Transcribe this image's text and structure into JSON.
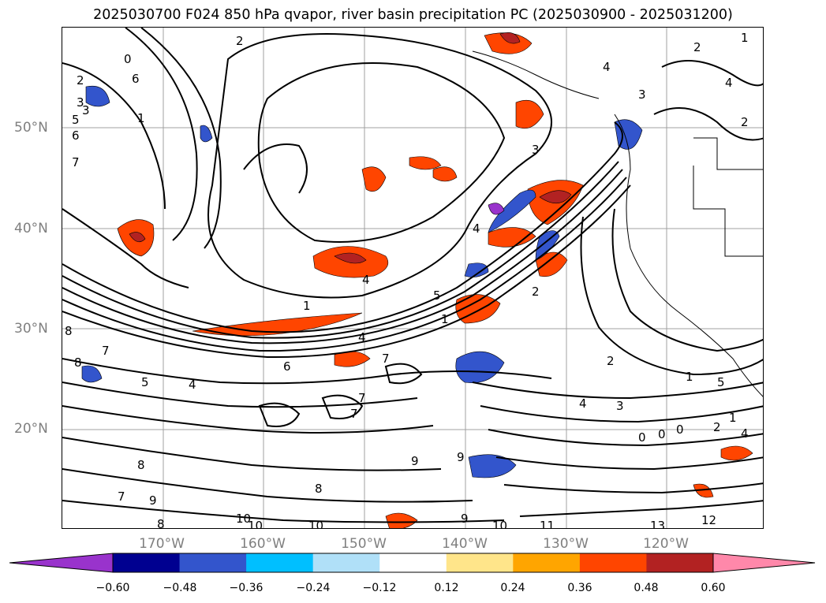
{
  "title": "2025030700 F024 850 hPa qvapor, river basin precipitation PC (2025030900 - 2025031200)",
  "lat_labels": [
    "50°N",
    "40°N",
    "30°N",
    "20°N"
  ],
  "lon_labels": [
    "170°W",
    "160°W",
    "150°W",
    "140°W",
    "130°W",
    "120°W"
  ],
  "colorbar": {
    "colors": [
      "#9933cc",
      "#000090",
      "#3355cc",
      "#00bfff",
      "#b0e0f8",
      "#ffffff",
      "#ffe58a",
      "#ffa500",
      "#ff4500",
      "#b22222",
      "#ff88aa"
    ],
    "ticks": [
      "−0.60",
      "−0.48",
      "−0.36",
      "−0.24",
      "−0.12",
      "0.12",
      "0.24",
      "0.36",
      "0.48",
      "0.60"
    ]
  },
  "contour_labels": [
    "2",
    "3",
    "5",
    "6",
    "7",
    "8",
    "0",
    "1",
    "2",
    "3",
    "4",
    "1",
    "3",
    "2",
    "4",
    "7",
    "8",
    "6",
    "7",
    "5",
    "4",
    "7",
    "8",
    "8",
    "9",
    "10",
    "10",
    "10",
    "7",
    "8",
    "9",
    "9",
    "10",
    "11",
    "12",
    "13",
    "4",
    "1",
    "1",
    "2",
    "3",
    "4",
    "5",
    "9",
    "2",
    "4",
    "3",
    "2",
    "4",
    "1",
    "5",
    "1",
    "4",
    "7",
    "0",
    "0",
    "0",
    "2",
    "6"
  ]
}
